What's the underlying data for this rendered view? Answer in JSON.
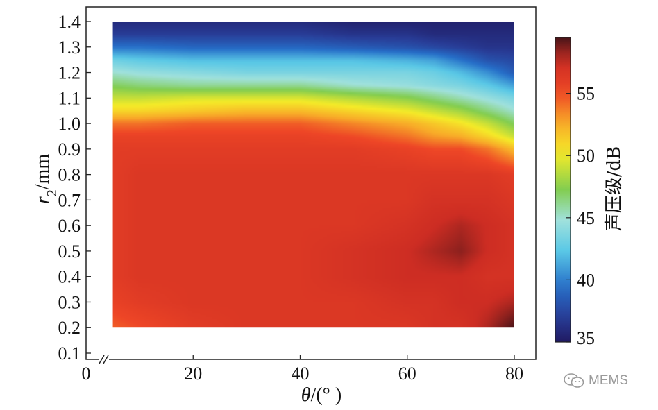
{
  "chart_data": {
    "type": "heatmap",
    "xlabel_symbol": "θ",
    "xlabel_unit": "/(° )",
    "ylabel_symbol": "r",
    "ylabel_subscript": "2",
    "ylabel_unit": "/mm",
    "x_ticks": [
      "0",
      "20",
      "40",
      "60",
      "80"
    ],
    "x_tick_values": [
      0,
      20,
      40,
      60,
      80
    ],
    "y_ticks": [
      "0.1",
      "0.2",
      "0.3",
      "0.4",
      "0.5",
      "0.6",
      "0.7",
      "0.8",
      "0.9",
      "1.0",
      "1.1",
      "1.2",
      "1.3",
      "1.4"
    ],
    "y_tick_values": [
      0.1,
      0.2,
      0.3,
      0.4,
      0.5,
      0.6,
      0.7,
      0.8,
      0.9,
      1.0,
      1.1,
      1.2,
      1.3,
      1.4
    ],
    "xlim": [
      0,
      80
    ],
    "ylim": [
      0.1,
      1.4
    ],
    "x_axis_break": true,
    "data_x_range": [
      5,
      80
    ],
    "data_y_range": [
      0.2,
      1.4
    ],
    "colorbar": {
      "title": "声压级/dB",
      "ticks": [
        "35",
        "40",
        "45",
        "50",
        "55"
      ],
      "tick_values": [
        35,
        40,
        45,
        50,
        55
      ],
      "range": [
        35,
        59.5
      ],
      "colormap": "jet-like"
    },
    "x": [
      5,
      10,
      20,
      30,
      40,
      50,
      60,
      65,
      70,
      75,
      80
    ],
    "y": [
      0.2,
      0.3,
      0.4,
      0.5,
      0.6,
      0.7,
      0.8,
      0.9,
      0.95,
      1.0,
      1.05,
      1.1,
      1.15,
      1.2,
      1.25,
      1.3,
      1.35,
      1.4
    ],
    "z": [
      [
        54.5,
        55.0,
        56.0,
        56.5,
        56.5,
        56.5,
        56.5,
        57.0,
        57.0,
        58.0,
        59.5
      ],
      [
        55.5,
        56.0,
        56.5,
        56.5,
        56.5,
        56.5,
        57.0,
        57.0,
        57.5,
        57.5,
        58.0
      ],
      [
        56.0,
        56.5,
        56.5,
        56.5,
        56.5,
        57.0,
        57.5,
        57.5,
        57.5,
        57.0,
        57.0
      ],
      [
        56.0,
        56.5,
        56.5,
        56.5,
        56.5,
        57.0,
        57.5,
        58.0,
        58.5,
        57.5,
        57.0
      ],
      [
        56.0,
        56.5,
        56.5,
        56.5,
        56.5,
        56.5,
        57.0,
        57.5,
        58.0,
        57.5,
        57.0
      ],
      [
        56.0,
        56.5,
        56.5,
        56.5,
        56.5,
        56.5,
        56.5,
        57.0,
        57.0,
        57.0,
        56.5
      ],
      [
        56.0,
        56.5,
        56.5,
        56.5,
        56.5,
        56.5,
        56.5,
        56.5,
        56.5,
        56.5,
        56.0
      ],
      [
        56.0,
        56.0,
        56.0,
        56.0,
        56.0,
        56.0,
        55.5,
        55.0,
        55.0,
        54.0,
        52.0
      ],
      [
        55.5,
        55.5,
        55.5,
        55.5,
        55.5,
        55.0,
        54.0,
        53.0,
        52.5,
        51.0,
        49.0
      ],
      [
        54.0,
        54.0,
        54.5,
        54.5,
        54.5,
        53.5,
        52.5,
        51.5,
        50.5,
        49.0,
        47.0
      ],
      [
        51.0,
        51.0,
        51.5,
        52.0,
        52.0,
        51.0,
        50.0,
        49.0,
        48.0,
        46.5,
        45.0
      ],
      [
        49.0,
        49.0,
        49.5,
        49.5,
        49.5,
        48.5,
        47.5,
        46.5,
        45.5,
        44.5,
        43.5
      ],
      [
        47.0,
        46.5,
        46.0,
        46.0,
        46.0,
        45.0,
        44.5,
        44.0,
        43.5,
        42.5,
        41.0
      ],
      [
        45.0,
        44.5,
        44.0,
        43.5,
        43.5,
        43.5,
        43.5,
        43.0,
        42.0,
        40.5,
        38.5
      ],
      [
        43.0,
        42.5,
        42.0,
        42.0,
        42.0,
        42.0,
        41.5,
        41.0,
        39.5,
        38.0,
        37.5
      ],
      [
        39.5,
        39.5,
        39.0,
        39.0,
        39.0,
        38.5,
        38.0,
        37.5,
        37.0,
        36.5,
        36.5
      ],
      [
        37.0,
        37.0,
        37.0,
        37.0,
        37.0,
        36.5,
        36.5,
        36.0,
        36.0,
        36.0,
        36.0
      ],
      [
        36.0,
        36.0,
        36.0,
        36.0,
        36.0,
        35.5,
        35.5,
        35.5,
        35.5,
        35.5,
        35.5
      ]
    ]
  },
  "watermark": {
    "text": "MEMS",
    "icon": "wechat-icon"
  }
}
